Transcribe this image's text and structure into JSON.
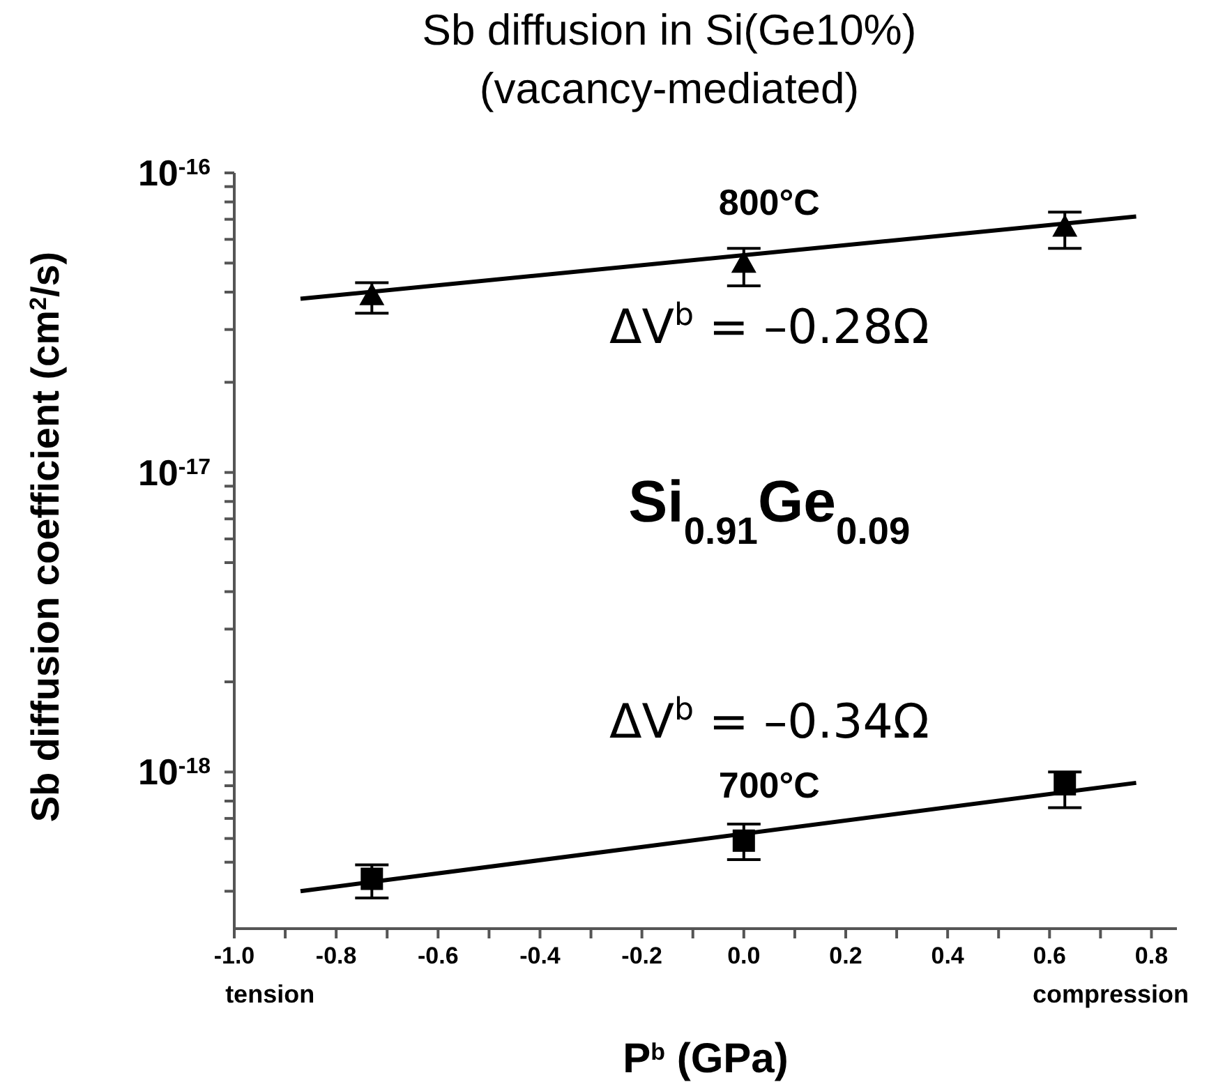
{
  "chart_data": {
    "type": "scatter",
    "title": "Sb diffusion in Si(Ge10%)",
    "subtitle": "(vacancy-mediated)",
    "xlabel": "P$^{b}$ (GPa)",
    "ylabel": "Sb diffusion coefficient (cm$^{2}$/s)",
    "log": "y",
    "xlim": [
      -1.0,
      0.85
    ],
    "ylim": [
      3e-19,
      1e-16
    ],
    "xticks": [
      {
        "value": -1,
        "label": "-1.0"
      },
      {
        "value": -0.9,
        "label": null
      },
      {
        "value": -0.8,
        "label": "-0.8"
      },
      {
        "value": -0.7,
        "label": null
      },
      {
        "value": -0.6,
        "label": "-0.6"
      },
      {
        "value": -0.5,
        "label": null
      },
      {
        "value": -0.4,
        "label": "-0.4"
      },
      {
        "value": -0.3,
        "label": null
      },
      {
        "value": -0.2,
        "label": "-0.2"
      },
      {
        "value": -0.1,
        "label": null
      },
      {
        "value": 0,
        "label": "0.0"
      },
      {
        "value": 0.1,
        "label": null
      },
      {
        "value": 0.2,
        "label": "0.2"
      },
      {
        "value": 0.3,
        "label": null
      },
      {
        "value": 0.4,
        "label": "0.4"
      },
      {
        "value": 0.5,
        "label": null
      },
      {
        "value": 0.6,
        "label": "0.6"
      },
      {
        "value": 0.7,
        "label": null
      },
      {
        "value": 0.8,
        "label": "0.8"
      }
    ],
    "yticks": [
      {
        "value": 4e-19,
        "label": null
      },
      {
        "value": 5e-19,
        "label": null
      },
      {
        "value": 6e-19,
        "label": null
      },
      {
        "value": 7e-19,
        "label": null
      },
      {
        "value": 8e-19,
        "label": null
      },
      {
        "value": 9e-19,
        "label": null
      },
      {
        "value": 1e-18,
        "label": "10$^{-18}$"
      },
      {
        "value": 2e-18,
        "label": null
      },
      {
        "value": 3e-18,
        "label": null
      },
      {
        "value": 4e-18,
        "label": null
      },
      {
        "value": 5e-18,
        "label": null
      },
      {
        "value": 6e-18,
        "label": null
      },
      {
        "value": 7e-18,
        "label": null
      },
      {
        "value": 8e-18,
        "label": null
      },
      {
        "value": 9e-18,
        "label": null
      },
      {
        "value": 1e-17,
        "label": "10$^{-17}$"
      },
      {
        "value": 2e-17,
        "label": null
      },
      {
        "value": 3e-17,
        "label": null
      },
      {
        "value": 4e-17,
        "label": null
      },
      {
        "value": 5e-17,
        "label": null
      },
      {
        "value": 6e-17,
        "label": null
      },
      {
        "value": 7e-17,
        "label": null
      },
      {
        "value": 8e-17,
        "label": null
      },
      {
        "value": 9e-17,
        "label": null
      },
      {
        "value": 1e-16,
        "label": "10$^{-16}$"
      }
    ],
    "series": [
      {
        "marker": "triangle",
        "color": "#000000",
        "x": [
          -0.73,
          0,
          0.63
        ],
        "values": [
          3.9e-17,
          5e-17,
          6.6e-17
        ],
        "errors": [
          [
            3.4e-17,
            4.3e-17
          ],
          [
            4.2e-17,
            5.6e-17
          ],
          [
            5.6e-17,
            7.4e-17
          ]
        ]
      },
      {
        "type": "line",
        "marker": "none",
        "color": "#000000",
        "x": [
          -0.87,
          0.77
        ],
        "values": [
          3.8e-17,
          7.15e-17
        ]
      },
      {
        "marker": "square",
        "color": "#000000",
        "x": [
          -0.73,
          0,
          0.63
        ],
        "values": [
          4.4e-19,
          5.9e-19,
          9.1e-19
        ],
        "errors": [
          [
            3.8e-19,
            4.9e-19
          ],
          [
            5.1e-19,
            6.7e-19
          ],
          [
            7.6e-19,
            1e-18
          ]
        ]
      },
      {
        "type": "line",
        "marker": "none",
        "color": "#000000",
        "x": [
          -0.87,
          0.77
        ],
        "values": [
          4e-19,
          9.2e-19
        ]
      }
    ],
    "annotations": [
      "800°C",
      "ΔV$^{b}$ = –0.28Ω",
      "Si$_{0.91}$Ge$_{0.09}$",
      "ΔV$^{b}$ = –0.34Ω",
      "700°C",
      "tension",
      "compression"
    ]
  }
}
